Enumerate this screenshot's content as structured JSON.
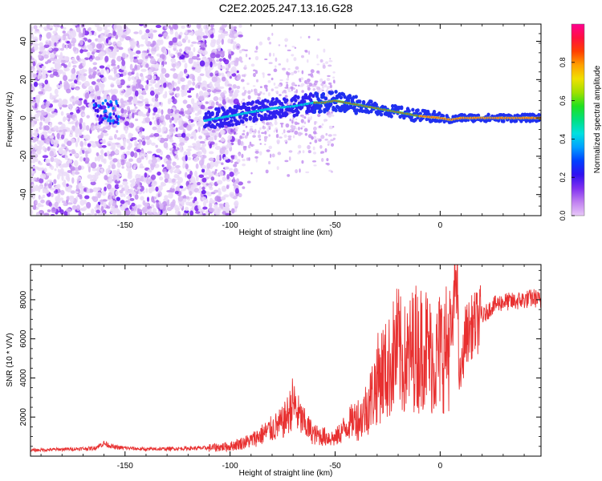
{
  "title": "C2E2.2025.247.13.16.G28",
  "colors": {
    "spectrogram_ridge": "#ff2020",
    "snr_line": "#e83030",
    "axis": "#000000"
  },
  "chart_data": [
    {
      "type": "heatmap",
      "name": "spectrogram",
      "xlabel": "Height of straight line (km)",
      "ylabel": "Frequency (Hz)",
      "xlim": [
        -195,
        48
      ],
      "ylim": [
        -51,
        49
      ],
      "xticks": [
        -150,
        -100,
        -50,
        0
      ],
      "xtick_labels": [
        "-150",
        "-100",
        "-50",
        "0"
      ],
      "yticks": [
        -40,
        -20,
        0,
        20,
        40
      ],
      "ytick_labels": [
        "-40",
        "-20",
        "0",
        "20",
        "40"
      ],
      "ridge": {
        "x": [
          -165,
          -160,
          -155,
          -150,
          -140,
          -130,
          -120,
          -110,
          -100,
          -90,
          -80,
          -70,
          -60,
          -55,
          -50,
          -45,
          -40,
          -35,
          -30,
          -25,
          -20,
          -15,
          -10,
          -5,
          0,
          5,
          10,
          20,
          30,
          40,
          48
        ],
        "y": [
          3,
          2,
          0,
          -2,
          -3,
          -4,
          -3,
          -1,
          1,
          3,
          5,
          6,
          8,
          8,
          9,
          8,
          7,
          6,
          5,
          4,
          3,
          2,
          1,
          0.5,
          0,
          -1,
          0,
          0,
          0,
          0,
          0
        ]
      }
    },
    {
      "type": "line",
      "name": "snr",
      "xlabel": "Height of straight line (km)",
      "ylabel": "SNR (10 * V/V)",
      "xlim": [
        -195,
        48
      ],
      "ylim": [
        0,
        9800
      ],
      "xticks": [
        -150,
        -100,
        -50,
        0
      ],
      "xtick_labels": [
        "-150",
        "-100",
        "-50",
        "0"
      ],
      "yticks": [
        2000,
        4000,
        6000,
        8000
      ],
      "ytick_labels": [
        "2000",
        "4000",
        "6000",
        "8000"
      ],
      "series": [
        {
          "name": "SNR",
          "x": [
            -195,
            -180,
            -165,
            -160,
            -155,
            -140,
            -120,
            -110,
            -100,
            -95,
            -90,
            -85,
            -80,
            -75,
            -72,
            -70,
            -68,
            -65,
            -60,
            -55,
            -50,
            -45,
            -40,
            -38,
            -35,
            -32,
            -30,
            -27,
            -25,
            -22,
            -20,
            -18,
            -15,
            -12,
            -10,
            -8,
            -5,
            -2,
            0,
            2,
            4,
            6,
            7,
            8,
            9,
            10,
            12,
            15,
            20,
            25,
            30,
            35,
            40,
            45,
            48
          ],
          "y": [
            300,
            350,
            400,
            650,
            450,
            350,
            400,
            420,
            500,
            650,
            800,
            1100,
            1400,
            1700,
            2200,
            2800,
            2200,
            1700,
            1100,
            1000,
            900,
            1500,
            2000,
            1900,
            2500,
            3200,
            3900,
            4400,
            4300,
            5200,
            5600,
            4800,
            5000,
            5700,
            5300,
            5900,
            5200,
            4800,
            5500,
            5400,
            5700,
            6400,
            8900,
            9800,
            4000,
            4200,
            6200,
            6600,
            7100,
            7700,
            7900,
            7900,
            8000,
            8100,
            7900
          ]
        }
      ]
    }
  ],
  "colorbar": {
    "label": "Normalized spectral amplitude",
    "ticks": [
      0.0,
      0.2,
      0.4,
      0.6,
      0.8
    ],
    "tick_labels": [
      "0.0",
      "0.2",
      "0.4",
      "0.6",
      "0.8"
    ],
    "colormap": [
      "#e8c8f8",
      "#c080f0",
      "#8030f0",
      "#3010f0",
      "#0040ff",
      "#00a0ff",
      "#00e0e0",
      "#00e080",
      "#20e020",
      "#a0e000",
      "#f0e000",
      "#ffa000",
      "#ff4000",
      "#ff1040",
      "#ff0090"
    ]
  }
}
